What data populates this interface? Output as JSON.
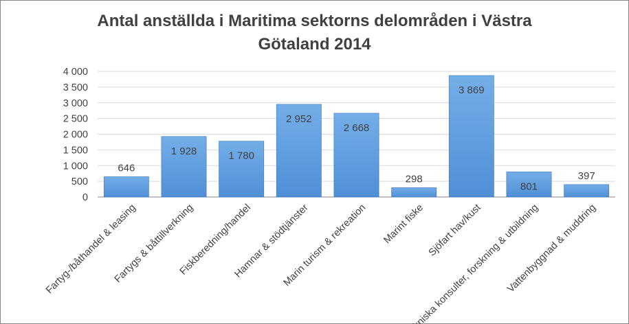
{
  "chart_data": {
    "type": "bar",
    "title_lines": [
      "Antal anställda i Maritima  sektorns delområden i Västra",
      "Götaland 2014"
    ],
    "categories": [
      "Fartyg-/båthandel & leasing",
      "Fartygs & båttillverkning",
      "Fiskberedning/handel",
      "Hamnar & stödtjänster",
      "Marin turism & rekreation",
      "Marint fiske",
      "Sjöfart hav/kust",
      "Tekniska konsulter, forskning & utbildning",
      "Vattenbyggnad & muddring"
    ],
    "values": [
      646,
      1928,
      1780,
      2952,
      2668,
      298,
      3869,
      801,
      397
    ],
    "data_labels": [
      "646",
      "1 928",
      "1 780",
      "2 952",
      "2 668",
      "298",
      "3 869",
      "801",
      "397"
    ],
    "ylim": [
      0,
      4000
    ],
    "yticks": [
      0,
      500,
      1000,
      1500,
      2000,
      2500,
      3000,
      3500,
      4000
    ],
    "ytick_labels": [
      "0",
      "500",
      "1 000",
      "1 500",
      "2 000",
      "2 500",
      "3 000",
      "3 500",
      "4 000"
    ],
    "grid": true,
    "bar_color": "#4f8fd6",
    "bar_color_light": "#74aee8",
    "legend": "none"
  }
}
